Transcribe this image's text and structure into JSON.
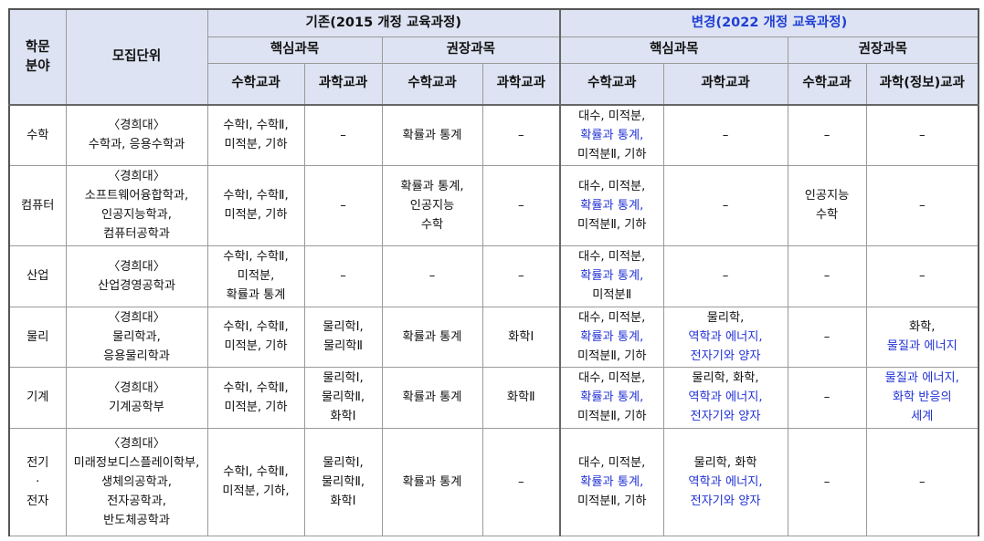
{
  "header": {
    "field": "학문\n분야",
    "unit": "모집단위",
    "before": "기존(2015 개정 교육과정)",
    "after": "변경(2022 개정 교육과정)",
    "core": "핵심과목",
    "recommended": "권장과목",
    "math": "수학교과",
    "science": "과학교과",
    "science_info": "과학(정보)교과"
  },
  "rows": [
    {
      "field": "수학",
      "unit": "〈경희대〉\n수학과, 응용수학과",
      "old_core_math": "수학Ⅰ, 수학Ⅱ,\n미적분, 기하",
      "old_core_sci": "–",
      "old_rec_math": "확률과 통계",
      "old_rec_sci": "–",
      "new_core_math": [
        {
          "t": "대수, 미적분,",
          "b": false
        },
        {
          "t": "확률과 통계,",
          "b": true
        },
        {
          "t": "미적분Ⅱ, 기하",
          "b": false
        }
      ],
      "new_core_sci": [
        {
          "t": "–",
          "b": false
        }
      ],
      "new_rec_math": [
        {
          "t": "–",
          "b": false
        }
      ],
      "new_rec_sci": [
        {
          "t": "–",
          "b": false
        }
      ]
    },
    {
      "field": "컴퓨터",
      "unit": "〈경희대〉\n소프트웨어융합학과,\n인공지능학과,\n컴퓨터공학과",
      "old_core_math": "수학Ⅰ, 수학Ⅱ,\n미적분, 기하",
      "old_core_sci": "–",
      "old_rec_math": "확률과 통계,\n인공지능\n수학",
      "old_rec_sci": "–",
      "new_core_math": [
        {
          "t": "대수, 미적분,",
          "b": false
        },
        {
          "t": "확률과 통계,",
          "b": true
        },
        {
          "t": "미적분Ⅱ, 기하",
          "b": false
        }
      ],
      "new_core_sci": [
        {
          "t": "–",
          "b": false
        }
      ],
      "new_rec_math": [
        {
          "t": "인공지능",
          "b": false
        },
        {
          "t": "수학",
          "b": false
        }
      ],
      "new_rec_sci": [
        {
          "t": "–",
          "b": false
        }
      ]
    },
    {
      "field": "산업",
      "unit": "〈경희대〉\n산업경영공학과",
      "old_core_math": "수학Ⅰ, 수학Ⅱ,\n미적분,\n확률과 통계",
      "old_core_sci": "–",
      "old_rec_math": "–",
      "old_rec_sci": "–",
      "new_core_math": [
        {
          "t": "대수, 미적분,",
          "b": false
        },
        {
          "t": "확률과 통계,",
          "b": true
        },
        {
          "t": "미적분Ⅱ",
          "b": false
        }
      ],
      "new_core_sci": [
        {
          "t": "–",
          "b": false
        }
      ],
      "new_rec_math": [
        {
          "t": "–",
          "b": false
        }
      ],
      "new_rec_sci": [
        {
          "t": "–",
          "b": false
        }
      ]
    },
    {
      "field": "물리",
      "unit": "〈경희대〉\n물리학과,\n응용물리학과",
      "old_core_math": "수학Ⅰ, 수학Ⅱ,\n미적분, 기하",
      "old_core_sci": "물리학Ⅰ,\n물리학Ⅱ",
      "old_rec_math": "확률과 통계",
      "old_rec_sci": "화학Ⅰ",
      "new_core_math": [
        {
          "t": "대수, 미적분,",
          "b": false
        },
        {
          "t": "확률과 통계,",
          "b": true
        },
        {
          "t": "미적분Ⅱ, 기하",
          "b": false
        }
      ],
      "new_core_sci": [
        {
          "t": "물리학,",
          "b": false
        },
        {
          "t": "역학과 에너지,",
          "b": true
        },
        {
          "t": "전자기와 양자",
          "b": true
        }
      ],
      "new_rec_math": [
        {
          "t": "–",
          "b": false
        }
      ],
      "new_rec_sci": [
        {
          "t": "화학,",
          "b": false
        },
        {
          "t": "물질과 에너지",
          "b": true
        }
      ]
    },
    {
      "field": "기계",
      "unit": "〈경희대〉\n기계공학부",
      "old_core_math": "수학Ⅰ, 수학Ⅱ,\n미적분, 기하",
      "old_core_sci": "물리학Ⅰ,\n물리학Ⅱ,\n화학Ⅰ",
      "old_rec_math": "확률과 통계",
      "old_rec_sci": "화학Ⅱ",
      "new_core_math": [
        {
          "t": "대수, 미적분,",
          "b": false
        },
        {
          "t": "확률과 통계,",
          "b": true
        },
        {
          "t": "미적분Ⅱ, 기하",
          "b": false
        }
      ],
      "new_core_sci": [
        {
          "t": "물리학, 화학,",
          "b": false
        },
        {
          "t": "역학과 에너지,",
          "b": true
        },
        {
          "t": "전자기와 양자",
          "b": true
        }
      ],
      "new_rec_math": [
        {
          "t": "–",
          "b": false
        }
      ],
      "new_rec_sci": [
        {
          "t": "물질과 에너지,",
          "b": true
        },
        {
          "t": "화학 반응의",
          "b": true
        },
        {
          "t": "세계",
          "b": true
        }
      ]
    },
    {
      "field": "전기\n·\n전자",
      "unit": "〈경희대〉\n미래정보디스플레이학부,\n생체의공학과,\n전자공학과,\n반도체공학과",
      "old_core_math": "수학Ⅰ, 수학Ⅱ,\n미적분, 기하,",
      "old_core_sci": "물리학Ⅰ,\n물리학Ⅱ,\n화학Ⅰ",
      "old_rec_math": "확률과 통계",
      "old_rec_sci": "–",
      "new_core_math": [
        {
          "t": "대수, 미적분,",
          "b": false
        },
        {
          "t": "확률과 통계,",
          "b": true
        },
        {
          "t": "미적분Ⅱ, 기하",
          "b": false
        }
      ],
      "new_core_sci": [
        {
          "t": "물리학, 화학",
          "b": false
        },
        {
          "t": "역학과 에너지,",
          "b": true
        },
        {
          "t": "전자기와 양자",
          "b": true
        }
      ],
      "new_rec_math": [
        {
          "t": "–",
          "b": false
        }
      ],
      "new_rec_sci": [
        {
          "t": "–",
          "b": false
        }
      ]
    }
  ]
}
